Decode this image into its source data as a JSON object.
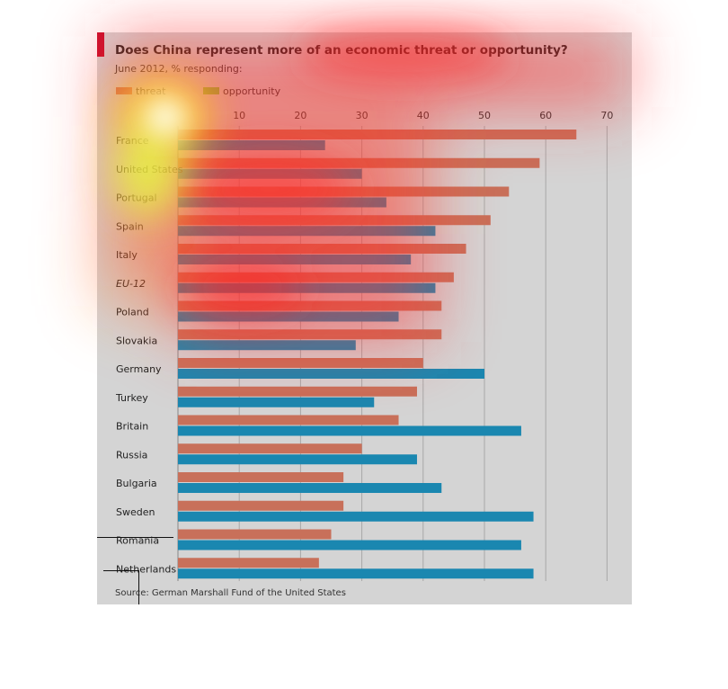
{
  "title": "Does China represent more of an economic threat or opportunity?",
  "subtitle": "June 2012, % responding:",
  "source": "Source: German Marshall Fund of the United States",
  "colors": {
    "threat": "#c8705a",
    "opportunity": "#1a87b0",
    "legend_opportunity": "#7dbf3c",
    "background": "#d4d4d4",
    "grid": "#a8a8a8"
  },
  "chart_data": {
    "type": "bar",
    "orientation": "horizontal",
    "title": "Does China represent more of an economic threat or opportunity?",
    "subtitle": "June 2012, % responding:",
    "categories": [
      "France",
      "United States",
      "Portugal",
      "Spain",
      "Italy",
      "EU-12",
      "Poland",
      "Slovakia",
      "Germany",
      "Turkey",
      "Britain",
      "Russia",
      "Bulgaria",
      "Sweden",
      "Romania",
      "Netherlands"
    ],
    "series": [
      {
        "name": "threat",
        "values": [
          65,
          59,
          54,
          51,
          47,
          45,
          43,
          43,
          40,
          39,
          36,
          30,
          27,
          27,
          25,
          23
        ]
      },
      {
        "name": "opportunity",
        "values": [
          24,
          30,
          34,
          42,
          38,
          42,
          36,
          29,
          50,
          32,
          56,
          39,
          43,
          58,
          56,
          58
        ]
      }
    ],
    "xlim": [
      0,
      70
    ],
    "xticks": [
      10,
      20,
      30,
      40,
      50,
      60,
      70
    ],
    "grid": true,
    "legend_position": "top-left",
    "italic_categories": [
      "EU-12"
    ]
  }
}
